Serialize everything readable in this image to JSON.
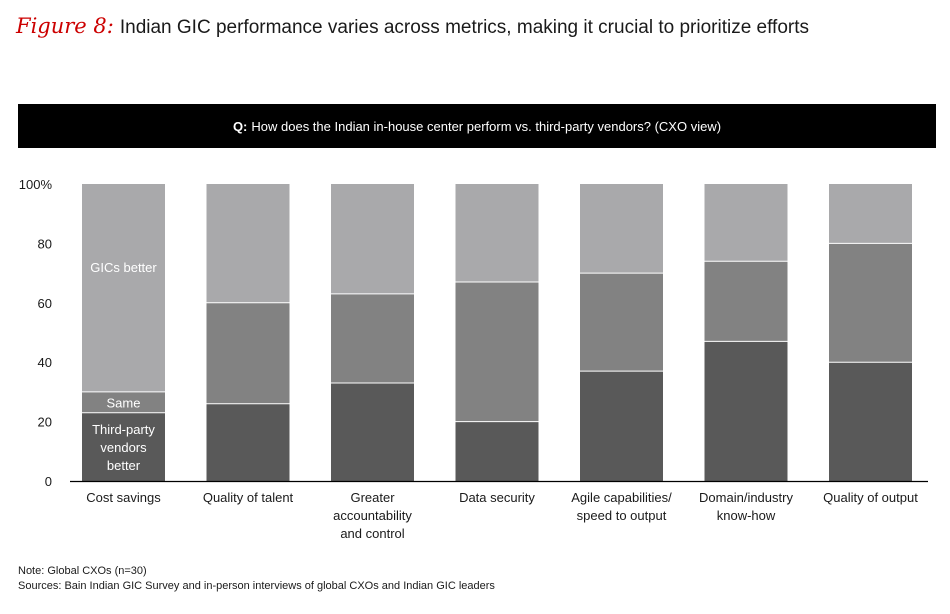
{
  "figure": {
    "label": "Figure 8:",
    "title": "Indian GIC performance varies across metrics, making it crucial to prioritize efforts"
  },
  "question": {
    "prefix": "Q:",
    "text": "How does the Indian in-house center perform vs. third-party vendors? (CXO view)"
  },
  "chart_data": {
    "type": "bar",
    "stacked": true,
    "categories": [
      "Cost savings",
      "Quality of talent",
      "Greater accountability and control",
      "Data security",
      "Agile capabilities/ speed to output",
      "Domain/industry know-how",
      "Quality of output"
    ],
    "category_lines": [
      [
        "Cost savings"
      ],
      [
        "Quality of talent"
      ],
      [
        "Greater",
        "accountability",
        "and control"
      ],
      [
        "Data security"
      ],
      [
        "Agile capabilities/",
        "speed to output"
      ],
      [
        "Domain/industry",
        "know-how"
      ],
      [
        "Quality of output"
      ]
    ],
    "series": [
      {
        "name": "Third-party vendors better",
        "label_lines": [
          "Third-party",
          "vendors",
          "better"
        ],
        "color": "#595959",
        "values": [
          23,
          26,
          33,
          20,
          37,
          47,
          40
        ]
      },
      {
        "name": "Same",
        "label_lines": [
          "Same"
        ],
        "color": "#828282",
        "values": [
          7,
          34,
          30,
          47,
          33,
          27,
          40
        ]
      },
      {
        "name": "GICs better",
        "label_lines": [
          "GICs better"
        ],
        "color": "#a9a9ab",
        "values": [
          70,
          40,
          37,
          33,
          30,
          26,
          20
        ]
      }
    ],
    "yticks": [
      "0",
      "20",
      "40",
      "60",
      "80",
      "100%"
    ],
    "ytick_values": [
      0,
      20,
      40,
      60,
      80,
      100
    ],
    "ylim": [
      0,
      100
    ],
    "xlabel": "",
    "ylabel": "",
    "legend": "inline labels on first bar"
  },
  "footer": {
    "note": "Note: Global CXOs (n=30)",
    "sources": "Sources: Bain Indian GIC Survey and in-person interviews of global CXOs and Indian GIC leaders"
  }
}
